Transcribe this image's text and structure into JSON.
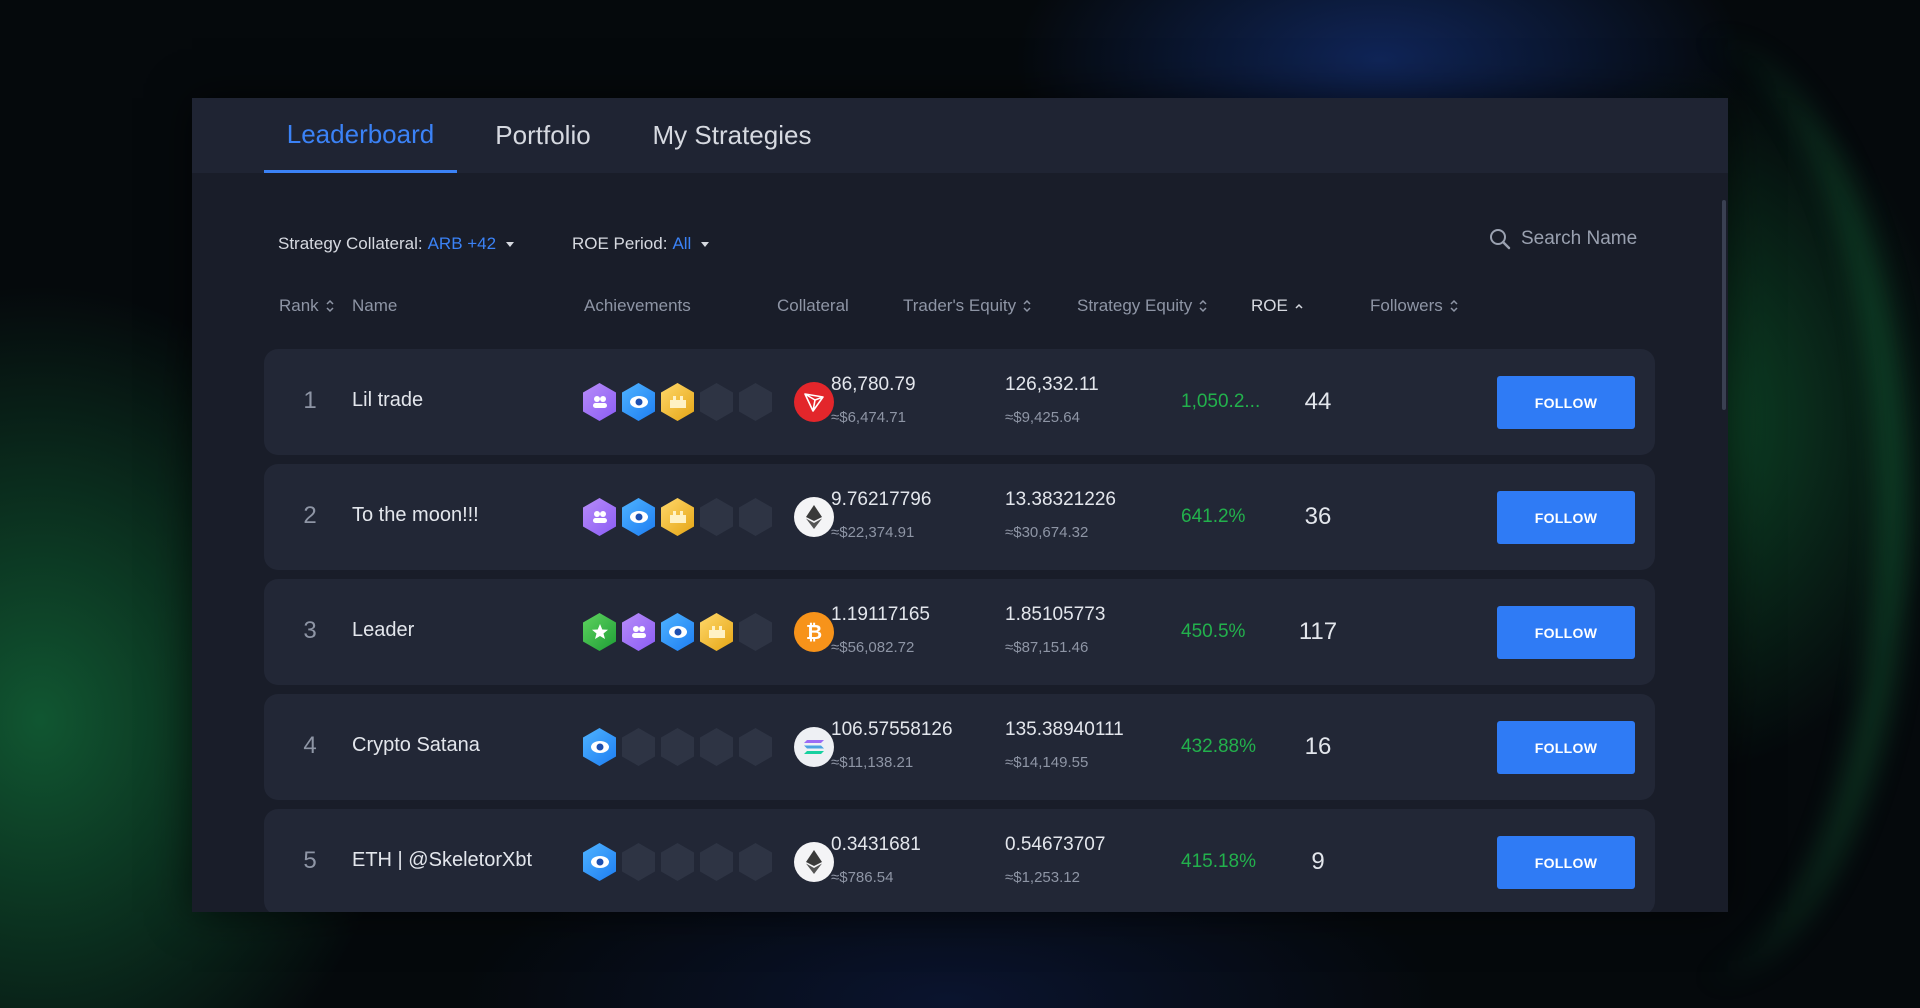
{
  "tabs": [
    {
      "label": "Leaderboard",
      "active": true
    },
    {
      "label": "Portfolio",
      "active": false
    },
    {
      "label": "My Strategies",
      "active": false
    }
  ],
  "filters": {
    "collateral_label": "Strategy Collateral:",
    "collateral_value": "ARB +42",
    "period_label": "ROE Period:",
    "period_value": "All"
  },
  "search": {
    "placeholder": "Search Name"
  },
  "columns": {
    "rank": "Rank",
    "name": "Name",
    "achievements": "Achievements",
    "collateral": "Collateral",
    "traders_equity": "Trader's Equity",
    "strategy_equity": "Strategy Equity",
    "roe": "ROE",
    "followers": "Followers"
  },
  "follow_label": "FOLLOW",
  "rows": [
    {
      "rank": "1",
      "name": "Lil trade",
      "achievements": [
        "team-badge-icon",
        "eye-badge-icon",
        "crown-badge-icon",
        "empty",
        "empty"
      ],
      "collateral": "tron-icon",
      "traders_equity": "86,780.79",
      "traders_equity_usd": "≈$6,474.71",
      "strategy_equity": "126,332.11",
      "strategy_equity_usd": "≈$9,425.64",
      "roe": "1,050.2...",
      "followers": "44"
    },
    {
      "rank": "2",
      "name": "To the moon!!!",
      "achievements": [
        "team-badge-icon",
        "eye-badge-icon",
        "crown-badge-icon",
        "empty",
        "empty"
      ],
      "collateral": "ethereum-icon",
      "traders_equity": "9.76217796",
      "traders_equity_usd": "≈$22,374.91",
      "strategy_equity": "13.38321226",
      "strategy_equity_usd": "≈$30,674.32",
      "roe": "641.2%",
      "followers": "36"
    },
    {
      "rank": "3",
      "name": "Leader",
      "achievements": [
        "star-badge-icon",
        "team-badge-icon",
        "eye-badge-icon",
        "crown-badge-icon",
        "empty"
      ],
      "collateral": "bitcoin-icon",
      "traders_equity": "1.19117165",
      "traders_equity_usd": "≈$56,082.72",
      "strategy_equity": "1.85105773",
      "strategy_equity_usd": "≈$87,151.46",
      "roe": "450.5%",
      "followers": "117"
    },
    {
      "rank": "4",
      "name": "Crypto Satana",
      "achievements": [
        "eye-badge-icon",
        "empty",
        "empty",
        "empty",
        "empty"
      ],
      "collateral": "solana-icon",
      "traders_equity": "106.57558126",
      "traders_equity_usd": "≈$11,138.21",
      "strategy_equity": "135.38940111",
      "strategy_equity_usd": "≈$14,149.55",
      "roe": "432.88%",
      "followers": "16"
    },
    {
      "rank": "5",
      "name": "ETH | @SkeletorXbt",
      "achievements": [
        "eye-badge-icon",
        "empty",
        "empty",
        "empty",
        "empty"
      ],
      "collateral": "ethereum-icon",
      "traders_equity": "0.3431681",
      "traders_equity_usd": "≈$786.54",
      "strategy_equity": "0.54673707",
      "strategy_equity_usd": "≈$1,253.12",
      "roe": "415.18%",
      "followers": "9"
    }
  ],
  "colors": {
    "accent": "#3b82f6",
    "roe_positive": "#22b14c",
    "follow_button": "#2f7bf5",
    "panel": "#191d29",
    "row": "#222736"
  }
}
